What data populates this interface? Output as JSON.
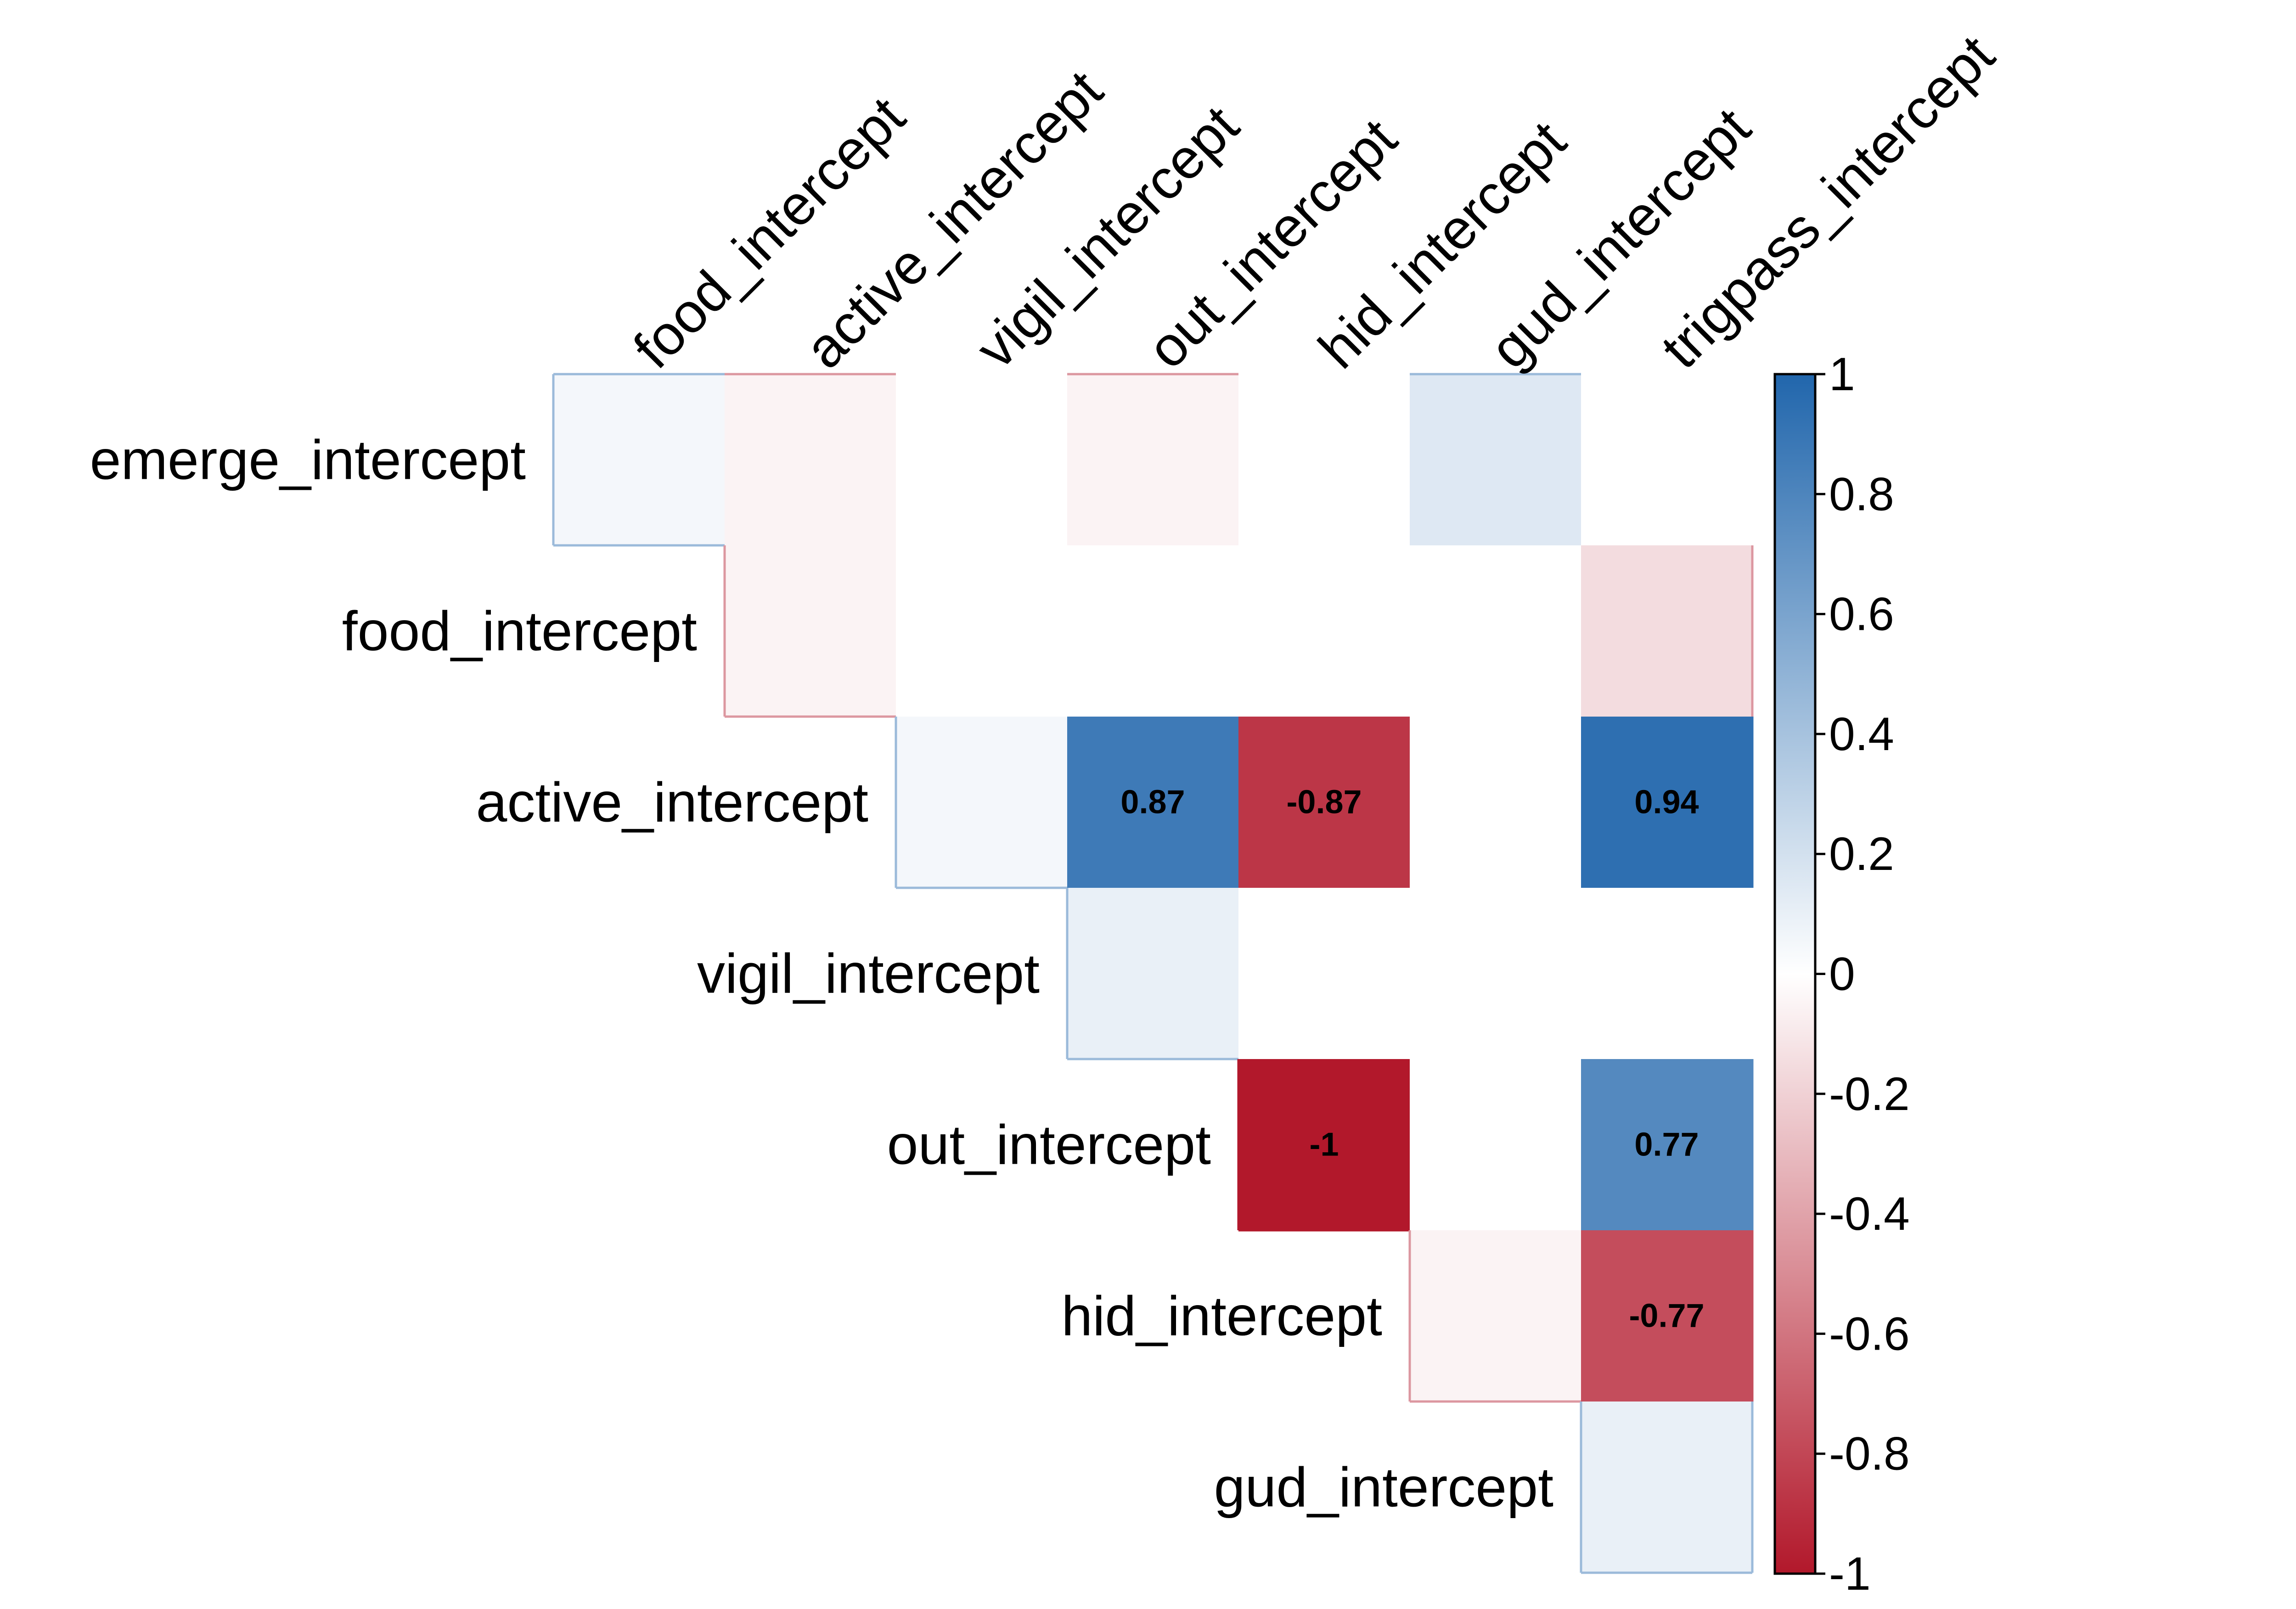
{
  "chart_data": {
    "type": "heatmap",
    "title": "",
    "xlabel": "",
    "ylabel": "",
    "row_labels": [
      "emerge_intercept",
      "food_intercept",
      "active_intercept",
      "vigil_intercept",
      "out_intercept",
      "hid_intercept",
      "gud_intercept"
    ],
    "column_labels": [
      "food_intercept",
      "active_intercept",
      "vigil_intercept",
      "out_intercept",
      "hid_intercept",
      "gud_intercept",
      "trigpass_intercept"
    ],
    "matrix_shape": "upper-triangle",
    "values": [
      [
        0.05,
        -0.05,
        0.0,
        -0.05,
        0.0,
        0.15,
        0.0
      ],
      [
        null,
        -0.05,
        0.0,
        0.0,
        0.0,
        0.0,
        -0.15
      ],
      [
        null,
        null,
        0.05,
        0.87,
        -0.87,
        0.0,
        0.94
      ],
      [
        null,
        null,
        null,
        0.1,
        0.0,
        0.0,
        0.0
      ],
      [
        null,
        null,
        null,
        null,
        -1,
        0.0,
        0.77
      ],
      [
        null,
        null,
        null,
        null,
        null,
        -0.05,
        -0.77
      ],
      [
        null,
        null,
        null,
        null,
        null,
        null,
        0.1
      ]
    ],
    "labeled_cells": [
      {
        "row": "active_intercept",
        "column": "out_intercept",
        "value": 0.87,
        "label": "0.87"
      },
      {
        "row": "active_intercept",
        "column": "hid_intercept",
        "value": -0.87,
        "label": "-0.87"
      },
      {
        "row": "active_intercept",
        "column": "trigpass_intercept",
        "value": 0.94,
        "label": "0.94"
      },
      {
        "row": "out_intercept",
        "column": "hid_intercept",
        "value": -1,
        "label": "-1"
      },
      {
        "row": "out_intercept",
        "column": "trigpass_intercept",
        "value": 0.77,
        "label": "0.77"
      },
      {
        "row": "hid_intercept",
        "column": "trigpass_intercept",
        "value": -0.77,
        "label": "-0.77"
      }
    ],
    "colorbar": {
      "range": [
        -1,
        1
      ],
      "ticks": [
        1,
        0.8,
        0.6,
        0.4,
        0.2,
        0,
        -0.2,
        -0.4,
        -0.6,
        -0.8,
        -1
      ],
      "tick_labels": [
        "1",
        "0.8",
        "0.6",
        "0.4",
        "0.2",
        "0",
        "-0.2",
        "-0.4",
        "-0.6",
        "-0.8",
        "-1"
      ],
      "colors": {
        "negative": "#b2182b",
        "zero": "#ffffff",
        "positive": "#2166ac"
      },
      "placement": "right"
    },
    "grid": false,
    "legend_placement": "right"
  }
}
